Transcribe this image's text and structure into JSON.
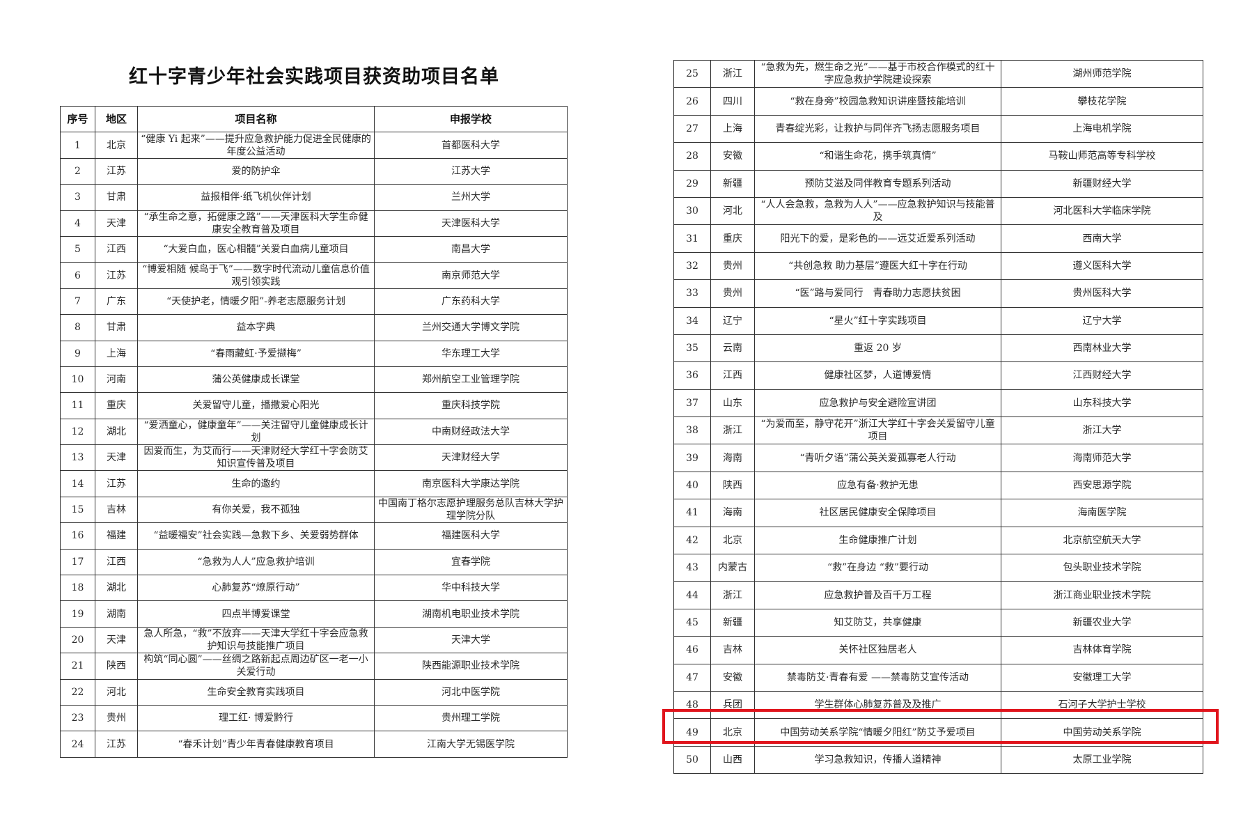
{
  "title": "红十字青少年社会实践项目获资助项目名单",
  "headers": {
    "no": "序号",
    "region": "地区",
    "project": "项目名称",
    "school": "申报学校"
  },
  "highlight_color": "#e0141c",
  "highlighted_row": "49",
  "rows": [
    {
      "no": "1",
      "region": "北京",
      "project": "“健康 Yi 起来”——提升应急救护能力促进全民健康的年度公益活动",
      "school": "首都医科大学"
    },
    {
      "no": "2",
      "region": "江苏",
      "project": "爱的防护伞",
      "school": "江苏大学"
    },
    {
      "no": "3",
      "region": "甘肃",
      "project": "益报相伴·纸飞机伙伴计划",
      "school": "兰州大学"
    },
    {
      "no": "4",
      "region": "天津",
      "project": "“承生命之意，拓健康之路”——天津医科大学生命健康安全教育普及项目",
      "school": "天津医科大学"
    },
    {
      "no": "5",
      "region": "江西",
      "project": "“大爱白血，医心相髓”关爱白血病儿童项目",
      "school": "南昌大学"
    },
    {
      "no": "6",
      "region": "江苏",
      "project": "“博爱相随 候鸟于飞”——数字时代流动儿童信息价值观引领实践",
      "school": "南京师范大学"
    },
    {
      "no": "7",
      "region": "广东",
      "project": "“天使护老，情暖夕阳”-养老志愿服务计划",
      "school": "广东药科大学"
    },
    {
      "no": "8",
      "region": "甘肃",
      "project": "益本字典",
      "school": "兰州交通大学博文学院"
    },
    {
      "no": "9",
      "region": "上海",
      "project": "“春雨藏虹·予爱撷梅”",
      "school": "华东理工大学"
    },
    {
      "no": "10",
      "region": "河南",
      "project": "蒲公英健康成长课堂",
      "school": "郑州航空工业管理学院"
    },
    {
      "no": "11",
      "region": "重庆",
      "project": "关爱留守儿童，播撒爱心阳光",
      "school": "重庆科技学院"
    },
    {
      "no": "12",
      "region": "湖北",
      "project": "“爱洒童心，健康童年”——关注留守儿童健康成长计划",
      "school": "中南财经政法大学"
    },
    {
      "no": "13",
      "region": "天津",
      "project": "因爱而生，为艾而行——天津财经大学红十字会防艾知识宣传普及项目",
      "school": "天津财经大学"
    },
    {
      "no": "14",
      "region": "江苏",
      "project": "生命的邀约",
      "school": "南京医科大学康达学院"
    },
    {
      "no": "15",
      "region": "吉林",
      "project": "有你关爱，我不孤独",
      "school": "中国南丁格尔志愿护理服务总队吉林大学护理学院分队"
    },
    {
      "no": "16",
      "region": "福建",
      "project": "“益暖福安”社会实践—急救下乡、关爱弱势群体",
      "school": "福建医科大学"
    },
    {
      "no": "17",
      "region": "江西",
      "project": "“急救为人人”应急救护培训",
      "school": "宜春学院"
    },
    {
      "no": "18",
      "region": "湖北",
      "project": "心肺复苏“燎原行动”",
      "school": "华中科技大学"
    },
    {
      "no": "19",
      "region": "湖南",
      "project": "四点半博爱课堂",
      "school": "湖南机电职业技术学院"
    },
    {
      "no": "20",
      "region": "天津",
      "project": "急人所急，“救”不放弃——天津大学红十字会应急救护知识与技能推广项目",
      "school": "天津大学"
    },
    {
      "no": "21",
      "region": "陕西",
      "project": "构筑“同心圆”——丝绸之路新起点周边矿区一老一小关爱行动",
      "school": "陕西能源职业技术学院"
    },
    {
      "no": "22",
      "region": "河北",
      "project": "生命安全教育实践项目",
      "school": "河北中医学院"
    },
    {
      "no": "23",
      "region": "贵州",
      "project": "理工红· 博爱黔行",
      "school": "贵州理工学院"
    },
    {
      "no": "24",
      "region": "江苏",
      "project": "“春禾计划”青少年青春健康教育项目",
      "school": "江南大学无锡医学院"
    },
    {
      "no": "25",
      "region": "浙江",
      "project": "“急救为先，燃生命之光”——基于市校合作模式的红十字应急救护学院建设探索",
      "school": "湖州师范学院"
    },
    {
      "no": "26",
      "region": "四川",
      "project": "“救在身旁”校园急救知识讲座暨技能培训",
      "school": "攀枝花学院"
    },
    {
      "no": "27",
      "region": "上海",
      "project": "青春绽光彩，让救护与同伴齐飞扬志愿服务项目",
      "school": "上海电机学院"
    },
    {
      "no": "28",
      "region": "安徽",
      "project": "“和谐生命花，携手筑真情”",
      "school": "马鞍山师范高等专科学校"
    },
    {
      "no": "29",
      "region": "新疆",
      "project": "预防艾滋及同伴教育专题系列活动",
      "school": "新疆财经大学"
    },
    {
      "no": "30",
      "region": "河北",
      "project": "“人人会急救，急救为人人”——应急救护知识与技能普及",
      "school": "河北医科大学临床学院"
    },
    {
      "no": "31",
      "region": "重庆",
      "project": "阳光下的爱，是彩色的——远艾近爱系列活动",
      "school": "西南大学"
    },
    {
      "no": "32",
      "region": "贵州",
      "project": "“共创急救 助力基层”遵医大红十字在行动",
      "school": "遵义医科大学"
    },
    {
      "no": "33",
      "region": "贵州",
      "project": "“医”路与爱同行　青春助力志愿扶贫困",
      "school": "贵州医科大学"
    },
    {
      "no": "34",
      "region": "辽宁",
      "project": "“星火”红十字实践项目",
      "school": "辽宁大学"
    },
    {
      "no": "35",
      "region": "云南",
      "project": "重返 20 岁",
      "school": "西南林业大学"
    },
    {
      "no": "36",
      "region": "江西",
      "project": "健康社区梦，人道博爱情",
      "school": "江西财经大学"
    },
    {
      "no": "37",
      "region": "山东",
      "project": "应急救护与安全避险宣讲团",
      "school": "山东科技大学"
    },
    {
      "no": "38",
      "region": "浙江",
      "project": "“为爱而至，静守花开”浙江大学红十字会关爱留守儿童项目",
      "school": "浙江大学"
    },
    {
      "no": "39",
      "region": "海南",
      "project": "“青听夕语”蒲公英关爱孤寡老人行动",
      "school": "海南师范大学"
    },
    {
      "no": "40",
      "region": "陕西",
      "project": "应急有备·救护无患",
      "school": "西安思源学院"
    },
    {
      "no": "41",
      "region": "海南",
      "project": "社区居民健康安全保障项目",
      "school": "海南医学院"
    },
    {
      "no": "42",
      "region": "北京",
      "project": "生命健康推广计划",
      "school": "北京航空航天大学"
    },
    {
      "no": "43",
      "region": "内蒙古",
      "project": "“救”在身边 “救”要行动",
      "school": "包头职业技术学院"
    },
    {
      "no": "44",
      "region": "浙江",
      "project": "应急救护普及百千万工程",
      "school": "浙江商业职业技术学院"
    },
    {
      "no": "45",
      "region": "新疆",
      "project": "知艾防艾，共享健康",
      "school": "新疆农业大学"
    },
    {
      "no": "46",
      "region": "吉林",
      "project": "关怀社区独居老人",
      "school": "吉林体育学院"
    },
    {
      "no": "47",
      "region": "安徽",
      "project": "禁毒防艾·青春有爱 ——禁毒防艾宣传活动",
      "school": "安徽理工大学"
    },
    {
      "no": "48",
      "region": "兵团",
      "project": "学生群体心肺复苏普及及推广",
      "school": "石河子大学护士学校"
    },
    {
      "no": "49",
      "region": "北京",
      "project": "中国劳动关系学院“情暖夕阳红”防艾予爱项目",
      "school": "中国劳动关系学院"
    },
    {
      "no": "50",
      "region": "山西",
      "project": "学习急救知识，传播人道精神",
      "school": "太原工业学院"
    }
  ]
}
